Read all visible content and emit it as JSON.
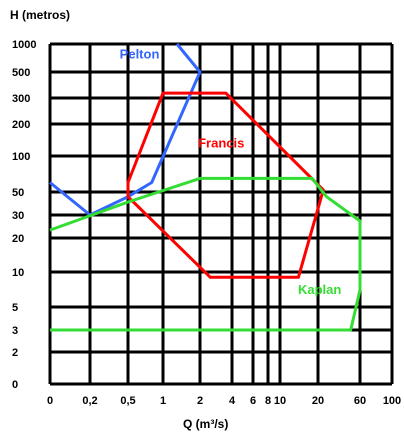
{
  "chart_data": {
    "type": "line",
    "title": "",
    "xlabel": "Q (m³/s)",
    "ylabel": "H (metros)",
    "x_ticks": [
      {
        "value": 0,
        "label": "0"
      },
      {
        "value": 0.2,
        "label": "0,2"
      },
      {
        "value": 0.5,
        "label": "0,5"
      },
      {
        "value": 1,
        "label": "1"
      },
      {
        "value": 2,
        "label": "2"
      },
      {
        "value": 4,
        "label": "4"
      },
      {
        "value": 6,
        "label": "6"
      },
      {
        "value": 8,
        "label": "8"
      },
      {
        "value": 10,
        "label": "10"
      },
      {
        "value": 20,
        "label": "20"
      },
      {
        "value": 60,
        "label": "60"
      },
      {
        "value": 100,
        "label": "100"
      }
    ],
    "y_ticks": [
      {
        "value": 0,
        "label": "0"
      },
      {
        "value": 2,
        "label": "2"
      },
      {
        "value": 3,
        "label": "3"
      },
      {
        "value": 5,
        "label": "5"
      },
      {
        "value": 10,
        "label": "10"
      },
      {
        "value": 20,
        "label": "20"
      },
      {
        "value": 30,
        "label": "30"
      },
      {
        "value": 50,
        "label": "50"
      },
      {
        "value": 100,
        "label": "100"
      },
      {
        "value": 200,
        "label": "200"
      },
      {
        "value": 300,
        "label": "300"
      },
      {
        "value": 500,
        "label": "500"
      },
      {
        "value": 1000,
        "label": "1000"
      }
    ],
    "grid": true,
    "series": [
      {
        "name": "Pelton",
        "color": "#3366ff",
        "closed": false,
        "points": [
          {
            "x": 0,
            "y": 60
          },
          {
            "x": 0.2,
            "y": 30
          },
          {
            "x": 0.5,
            "y": 45
          },
          {
            "x": 0.8,
            "y": 60
          },
          {
            "x": 2,
            "y": 500
          },
          {
            "x": 1.3,
            "y": 1000
          }
        ]
      },
      {
        "name": "Francis",
        "color": "#ff0000",
        "closed": true,
        "points": [
          {
            "x": 0.5,
            "y": 60
          },
          {
            "x": 1,
            "y": 330
          },
          {
            "x": 3.5,
            "y": 330
          },
          {
            "x": 23,
            "y": 52
          },
          {
            "x": 14,
            "y": 9
          },
          {
            "x": 2.5,
            "y": 9
          },
          {
            "x": 0.5,
            "y": 45
          }
        ]
      },
      {
        "name": "Kaplan",
        "color": "#33dd33",
        "closed": false,
        "points": [
          {
            "x": 0,
            "y": 23
          },
          {
            "x": 0.5,
            "y": 40
          },
          {
            "x": 2,
            "y": 65
          },
          {
            "x": 18,
            "y": 65
          },
          {
            "x": 25,
            "y": 45
          },
          {
            "x": 60,
            "y": 27
          },
          {
            "x": 60,
            "y": 7
          },
          {
            "x": 47,
            "y": 3
          },
          {
            "x": 0,
            "y": 3
          }
        ]
      }
    ]
  }
}
